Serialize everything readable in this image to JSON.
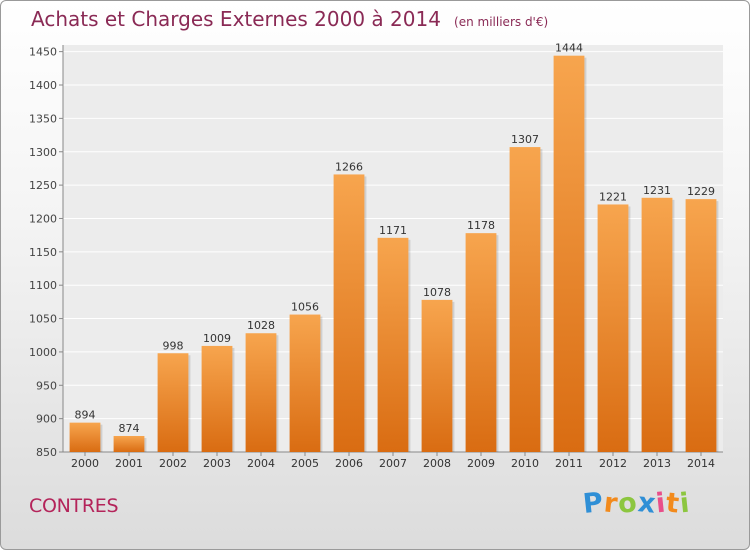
{
  "chart_data": {
    "type": "bar",
    "title": "Achats et Charges Externes 2000 à 2014",
    "subtitle": "(en milliers d'€)",
    "categories": [
      "2000",
      "2001",
      "2002",
      "2003",
      "2004",
      "2005",
      "2006",
      "2007",
      "2008",
      "2009",
      "2010",
      "2011",
      "2012",
      "2013",
      "2014"
    ],
    "values": [
      894,
      874,
      998,
      1009,
      1028,
      1056,
      1266,
      1171,
      1078,
      1178,
      1307,
      1444,
      1221,
      1231,
      1229
    ],
    "ylim": [
      850,
      1460
    ],
    "yticks": [
      850,
      900,
      950,
      1000,
      1050,
      1100,
      1150,
      1200,
      1250,
      1300,
      1350,
      1400,
      1450
    ],
    "xlabel": "",
    "ylabel": "",
    "grid": true,
    "bar_color": "#f0953a"
  },
  "footer": {
    "commune": "CONTRES",
    "logo_letters": [
      {
        "char": "P",
        "color": "#2f8fd6"
      },
      {
        "char": "r",
        "color": "#f28a1c"
      },
      {
        "char": "o",
        "color": "#8cc63f"
      },
      {
        "char": "x",
        "color": "#2f8fd6"
      },
      {
        "char": "i",
        "color": "#e94e8a"
      },
      {
        "char": "t",
        "color": "#f28a1c"
      },
      {
        "char": "i",
        "color": "#8cc63f"
      }
    ]
  }
}
